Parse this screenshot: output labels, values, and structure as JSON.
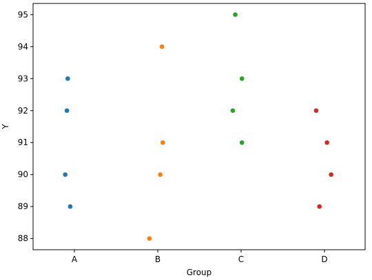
{
  "chart_data": {
    "type": "scatter",
    "title": "",
    "xlabel": "Group",
    "ylabel": "Y",
    "categories": [
      "A",
      "B",
      "C",
      "D"
    ],
    "yticks": [
      88,
      89,
      90,
      91,
      92,
      93,
      94,
      95
    ],
    "ylim": [
      87.65,
      95.35
    ],
    "grid": false,
    "series": [
      {
        "color": "#1f77b4",
        "points": [
          {
            "x": "A",
            "jitter": -0.08,
            "y": 93
          },
          {
            "x": "A",
            "jitter": -0.09,
            "y": 92
          },
          {
            "x": "A",
            "jitter": -0.11,
            "y": 90
          },
          {
            "x": "A",
            "jitter": -0.05,
            "y": 89
          }
        ]
      },
      {
        "color": "#ff7f0e",
        "points": [
          {
            "x": "B",
            "jitter": 0.05,
            "y": 94
          },
          {
            "x": "B",
            "jitter": 0.06,
            "y": 91
          },
          {
            "x": "B",
            "jitter": 0.03,
            "y": 90
          },
          {
            "x": "B",
            "jitter": -0.1,
            "y": 88
          }
        ]
      },
      {
        "color": "#2ca02c",
        "points": [
          {
            "x": "C",
            "jitter": -0.07,
            "y": 95
          },
          {
            "x": "C",
            "jitter": 0.01,
            "y": 93
          },
          {
            "x": "C",
            "jitter": -0.1,
            "y": 92
          },
          {
            "x": "C",
            "jitter": 0.01,
            "y": 91
          }
        ]
      },
      {
        "color": "#d62728",
        "points": [
          {
            "x": "D",
            "jitter": -0.1,
            "y": 92
          },
          {
            "x": "D",
            "jitter": 0.03,
            "y": 91
          },
          {
            "x": "D",
            "jitter": 0.08,
            "y": 90
          },
          {
            "x": "D",
            "jitter": -0.06,
            "y": 89
          }
        ]
      }
    ]
  }
}
